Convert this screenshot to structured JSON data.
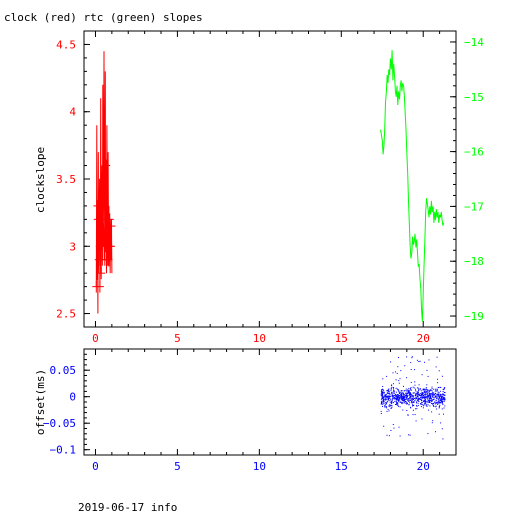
{
  "title": "clock (red) rtc (green) slopes",
  "footer": "2019-06-17 info",
  "colors": {
    "red": "#ff0000",
    "green": "#00ff00",
    "blue": "#0000ff",
    "axis": "#000000"
  },
  "chart_data": [
    {
      "type": "line",
      "id": "slopes",
      "title": "clock (red) rtc (green) slopes",
      "ylabel": "clockslope",
      "xlim": [
        -0.7,
        22
      ],
      "ylim": [
        2.4,
        4.6
      ],
      "y2lim": [
        -19.2,
        -13.8
      ],
      "x_ticks": [
        0,
        5,
        10,
        15,
        20
      ],
      "y_ticks": [
        2.5,
        3,
        3.5,
        4,
        4.5
      ],
      "y_tick_labels": [
        "2.5",
        "3",
        "3.5",
        "4",
        "4.5"
      ],
      "y2_ticks": [
        -19,
        -18,
        -17,
        -16,
        -15,
        -14
      ],
      "y2_tick_labels": [
        "−19",
        "−18",
        "−17",
        "−16",
        "−15",
        "−14"
      ],
      "series": [
        {
          "axis": "left",
          "color": "#ff0000",
          "x": [
            0.05,
            0.08,
            0.1,
            0.12,
            0.15,
            0.17,
            0.2,
            0.22,
            0.25,
            0.27,
            0.3,
            0.32,
            0.35,
            0.37,
            0.4,
            0.42,
            0.45,
            0.47,
            0.5,
            0.52,
            0.55,
            0.57,
            0.6,
            0.62,
            0.65,
            0.67,
            0.7,
            0.72,
            0.75,
            0.77,
            0.8,
            0.82,
            0.85,
            0.87,
            0.9,
            0.92,
            0.95,
            0.97,
            1.0,
            0.98,
            0.94,
            0.9,
            0.86,
            0.82,
            0.78,
            0.74,
            0.7,
            0.66,
            0.62,
            0.58,
            0.54,
            0.5,
            0.46,
            0.42,
            0.38,
            0.34,
            0.3,
            0.26,
            0.22,
            0.18,
            0.14,
            0.1
          ],
          "y": [
            2.7,
            3.9,
            2.8,
            3.3,
            2.5,
            3.7,
            2.9,
            3.2,
            3.5,
            2.7,
            3.0,
            4.1,
            2.8,
            3.2,
            3.6,
            2.9,
            4.2,
            3.0,
            3.5,
            4.45,
            3.3,
            2.9,
            4.3,
            3.1,
            3.6,
            2.8,
            3.9,
            3.2,
            3.0,
            3.7,
            2.9,
            3.3,
            3.0,
            3.2,
            2.8,
            3.1,
            3.0,
            3.2,
            2.8,
            3.15,
            2.9,
            3.2,
            3.0,
            2.85,
            3.1,
            2.9,
            3.25,
            2.95,
            3.0,
            3.2,
            2.9,
            3.1,
            3.3,
            2.95,
            3.2,
            2.9,
            3.1,
            3.0,
            3.2,
            2.8,
            3.2,
            2.75
          ]
        },
        {
          "axis": "right",
          "color": "#00ff00",
          "x": [
            17.4,
            17.5,
            17.55,
            17.6,
            17.65,
            17.7,
            17.75,
            17.8,
            17.85,
            17.9,
            17.95,
            18.0,
            18.05,
            18.1,
            18.15,
            18.2,
            18.25,
            18.3,
            18.35,
            18.4,
            18.45,
            18.5,
            18.55,
            18.6,
            18.65,
            18.7,
            18.75,
            18.8,
            18.85,
            18.9,
            18.95,
            19.0,
            19.05,
            19.1,
            19.15,
            19.2,
            19.25,
            19.3,
            19.35,
            19.4,
            19.45,
            19.5,
            19.55,
            19.6,
            19.65,
            19.7,
            19.75,
            19.8,
            19.85,
            19.9,
            19.95,
            20.0,
            20.05,
            20.1,
            20.15,
            20.2,
            20.25,
            20.3,
            20.35,
            20.4,
            20.45,
            20.5,
            20.55,
            20.6,
            20.65,
            20.7,
            20.75,
            20.8,
            20.85,
            20.9,
            20.95,
            21.0,
            21.05,
            21.1,
            21.15,
            21.2,
            21.25
          ],
          "y": [
            -15.6,
            -15.8,
            -16.05,
            -15.9,
            -15.6,
            -15.1,
            -14.9,
            -14.6,
            -14.75,
            -14.5,
            -14.6,
            -14.3,
            -14.5,
            -14.15,
            -14.7,
            -14.4,
            -14.6,
            -14.9,
            -15.0,
            -14.8,
            -15.15,
            -14.9,
            -15.05,
            -14.8,
            -14.7,
            -14.9,
            -14.75,
            -14.8,
            -15.0,
            -15.3,
            -15.6,
            -16.0,
            -16.4,
            -16.9,
            -17.3,
            -17.7,
            -17.95,
            -17.85,
            -17.55,
            -17.7,
            -17.65,
            -17.5,
            -17.75,
            -17.6,
            -17.85,
            -18.1,
            -18.05,
            -18.3,
            -18.5,
            -18.9,
            -19.1,
            -18.6,
            -18.1,
            -17.6,
            -17.1,
            -16.85,
            -16.95,
            -17.05,
            -17.2,
            -17.0,
            -17.15,
            -16.9,
            -17.1,
            -17.0,
            -17.3,
            -17.1,
            -17.25,
            -17.05,
            -17.2,
            -17.1,
            -17.3,
            -17.15,
            -17.2,
            -17.1,
            -17.25,
            -17.35,
            -17.3
          ]
        }
      ]
    },
    {
      "type": "scatter",
      "id": "offset",
      "ylabel": "offset(ms)",
      "xlim": [
        -0.7,
        22
      ],
      "ylim": [
        -0.11,
        0.09
      ],
      "x_ticks": [
        0,
        5,
        10,
        15,
        20
      ],
      "y_ticks": [
        -0.1,
        -0.05,
        0,
        0.05
      ],
      "y_tick_labels": [
        "−0.1",
        "−0.05",
        "0",
        "0.05"
      ],
      "series": [
        {
          "color": "#0000ff",
          "x_range": [
            17.4,
            21.3
          ],
          "center": 0.0,
          "typical_spread": 0.012,
          "outlier_min": -0.08,
          "outlier_max": 0.08
        }
      ]
    }
  ]
}
